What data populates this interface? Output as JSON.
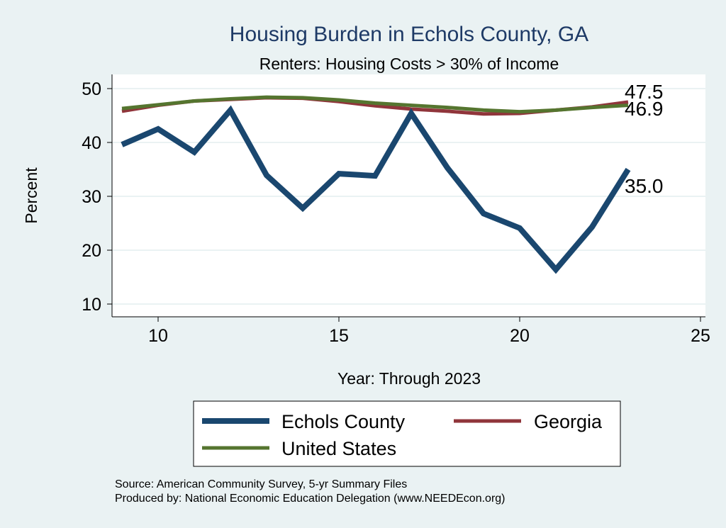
{
  "chart_data": {
    "type": "line",
    "title": "Housing Burden in Echols County, GA",
    "subtitle": "Renters: Housing Costs > 30% of Income",
    "xlabel": "Year: Through 2023",
    "ylabel": "Percent",
    "xlim": [
      8.7,
      25.2
    ],
    "ylim": [
      8.5,
      52.7
    ],
    "xticks": [
      10,
      15,
      20,
      25
    ],
    "yticks": [
      10,
      20,
      30,
      40,
      50
    ],
    "grid": true,
    "legend_position": "bottom",
    "x": [
      9,
      10,
      11,
      12,
      13,
      14,
      15,
      16,
      17,
      18,
      19,
      20,
      21,
      22,
      23
    ],
    "series": [
      {
        "name": "Echols County",
        "color": "#1a476f",
        "end_label": "35.0",
        "values": [
          39.6,
          42.5,
          38.2,
          46.0,
          33.9,
          27.8,
          34.2,
          33.8,
          45.4,
          35.3,
          26.8,
          24.1,
          16.4,
          24.3,
          35.0
        ]
      },
      {
        "name": "Georgia",
        "color": "#90353b",
        "end_label": "47.5",
        "values": [
          45.8,
          46.9,
          47.7,
          48.0,
          48.3,
          48.2,
          47.6,
          46.8,
          46.2,
          45.8,
          45.3,
          45.4,
          46.0,
          46.6,
          47.5
        ]
      },
      {
        "name": "United States",
        "color": "#55752f",
        "end_label": "46.9",
        "values": [
          46.3,
          47.0,
          47.7,
          48.1,
          48.4,
          48.3,
          47.9,
          47.3,
          46.9,
          46.5,
          46.0,
          45.7,
          46.0,
          46.5,
          46.9
        ]
      }
    ]
  },
  "source": "Source: American Community Survey, 5-yr Summary Files",
  "produced_by": "Produced by: National Economic Education Delegation (www.NEEDEcon.org)"
}
